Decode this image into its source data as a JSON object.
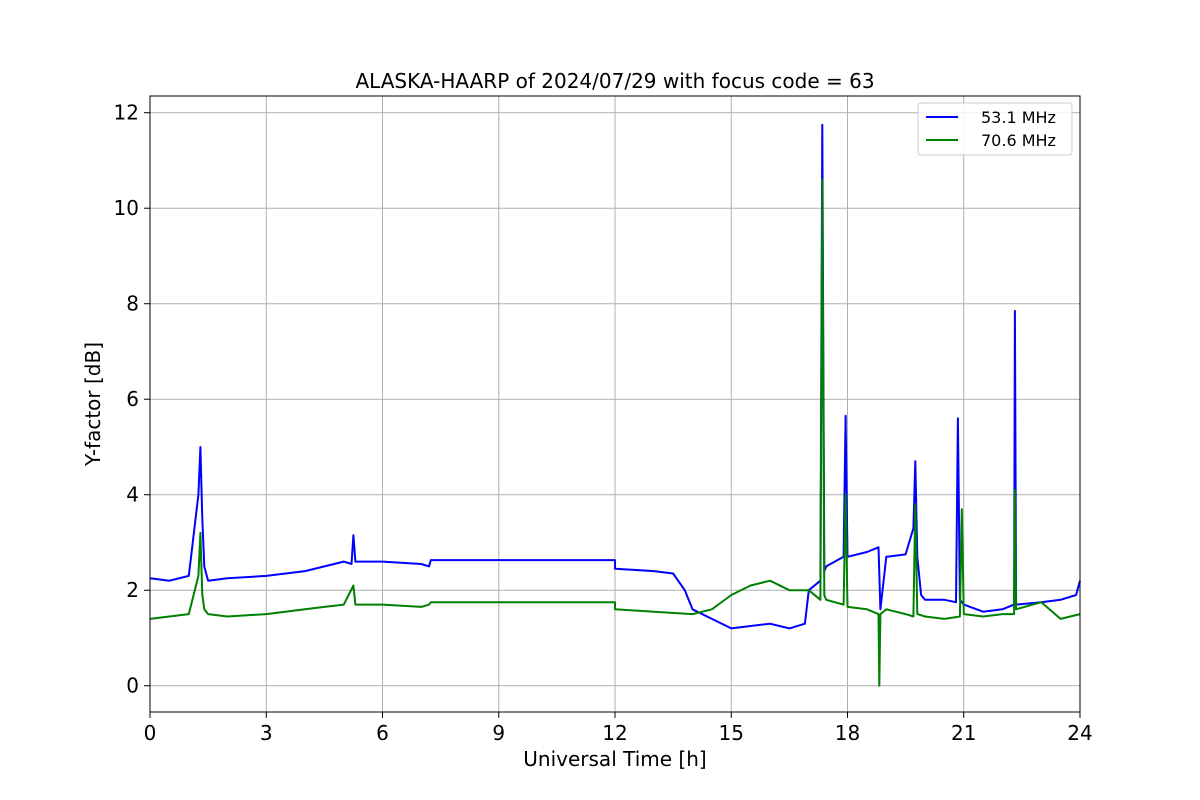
{
  "chart_data": {
    "type": "line",
    "title": "ALASKA-HAARP of 2024/07/29 with focus code = 63",
    "xlabel": "Universal Time [h]",
    "ylabel": "Y-factor [dB]",
    "xlim": [
      0,
      24
    ],
    "ylim": [
      -0.55,
      12.35
    ],
    "xticks": [
      0,
      3,
      6,
      9,
      12,
      15,
      18,
      21,
      24
    ],
    "xtick_labels": [
      "0",
      "3",
      "6",
      "9",
      "12",
      "15",
      "18",
      "21",
      "24"
    ],
    "yticks": [
      0,
      2,
      4,
      6,
      8,
      10,
      12
    ],
    "ytick_labels": [
      "0",
      "2",
      "4",
      "6",
      "8",
      "10",
      "12"
    ],
    "grid": true,
    "legend_position": "top-right",
    "series": [
      {
        "name": "53.1 MHz",
        "color": "#0000ff",
        "x": [
          0,
          0.5,
          1.0,
          1.25,
          1.3,
          1.35,
          1.4,
          1.5,
          2.0,
          3.0,
          4.0,
          4.5,
          5.0,
          5.2,
          5.25,
          5.3,
          6.0,
          7.0,
          7.2,
          7.25,
          12.0,
          12.0,
          13.0,
          13.5,
          13.8,
          14.0,
          14.5,
          15.0,
          15.5,
          16.0,
          16.5,
          16.9,
          17.0,
          17.3,
          17.35,
          17.4,
          17.45,
          17.9,
          17.95,
          18.0,
          18.5,
          18.8,
          18.85,
          19.0,
          19.5,
          19.7,
          19.75,
          19.8,
          19.9,
          20.0,
          20.5,
          20.8,
          20.85,
          20.9,
          21.0,
          21.5,
          22.0,
          22.3,
          22.32,
          22.35,
          23.0,
          23.5,
          23.9,
          24.0
        ],
        "y": [
          2.25,
          2.2,
          2.3,
          4.0,
          5.0,
          3.5,
          2.5,
          2.2,
          2.25,
          2.3,
          2.4,
          2.5,
          2.6,
          2.55,
          3.15,
          2.6,
          2.6,
          2.55,
          2.5,
          2.63,
          2.63,
          2.45,
          2.4,
          2.35,
          2.0,
          1.6,
          1.4,
          1.2,
          1.25,
          1.3,
          1.2,
          1.3,
          2.0,
          2.2,
          11.75,
          2.4,
          2.5,
          2.7,
          5.65,
          2.7,
          2.8,
          2.9,
          1.6,
          2.7,
          2.75,
          3.3,
          4.7,
          2.7,
          1.9,
          1.8,
          1.8,
          1.75,
          5.6,
          1.8,
          1.7,
          1.55,
          1.6,
          1.7,
          7.85,
          1.7,
          1.75,
          1.8,
          1.9,
          2.2
        ]
      },
      {
        "name": "70.6 MHz",
        "color": "#008000",
        "x": [
          0,
          0.5,
          1.0,
          1.25,
          1.3,
          1.35,
          1.4,
          1.5,
          2.0,
          3.0,
          4.0,
          4.5,
          5.0,
          5.25,
          5.3,
          6.0,
          7.0,
          7.2,
          7.25,
          12.0,
          12.0,
          13.0,
          14.0,
          14.5,
          15.0,
          15.5,
          16.0,
          16.5,
          17.0,
          17.3,
          17.35,
          17.4,
          17.45,
          17.9,
          17.95,
          18.0,
          18.5,
          18.8,
          18.82,
          18.85,
          19.0,
          19.5,
          19.7,
          19.75,
          19.8,
          20.0,
          20.5,
          20.9,
          20.95,
          21.0,
          21.5,
          22.0,
          22.3,
          22.32,
          22.35,
          23.0,
          23.5,
          24.0
        ],
        "y": [
          1.4,
          1.45,
          1.5,
          2.3,
          3.2,
          1.9,
          1.6,
          1.5,
          1.45,
          1.5,
          1.6,
          1.65,
          1.7,
          2.1,
          1.7,
          1.7,
          1.65,
          1.7,
          1.75,
          1.75,
          1.6,
          1.55,
          1.5,
          1.6,
          1.9,
          2.1,
          2.2,
          2.0,
          2.0,
          1.8,
          10.6,
          1.9,
          1.8,
          1.7,
          4.0,
          1.65,
          1.6,
          1.5,
          0.0,
          1.5,
          1.6,
          1.5,
          1.45,
          3.8,
          1.5,
          1.45,
          1.4,
          1.45,
          3.7,
          1.5,
          1.45,
          1.5,
          1.5,
          4.1,
          1.6,
          1.75,
          1.4,
          1.5
        ]
      }
    ]
  }
}
